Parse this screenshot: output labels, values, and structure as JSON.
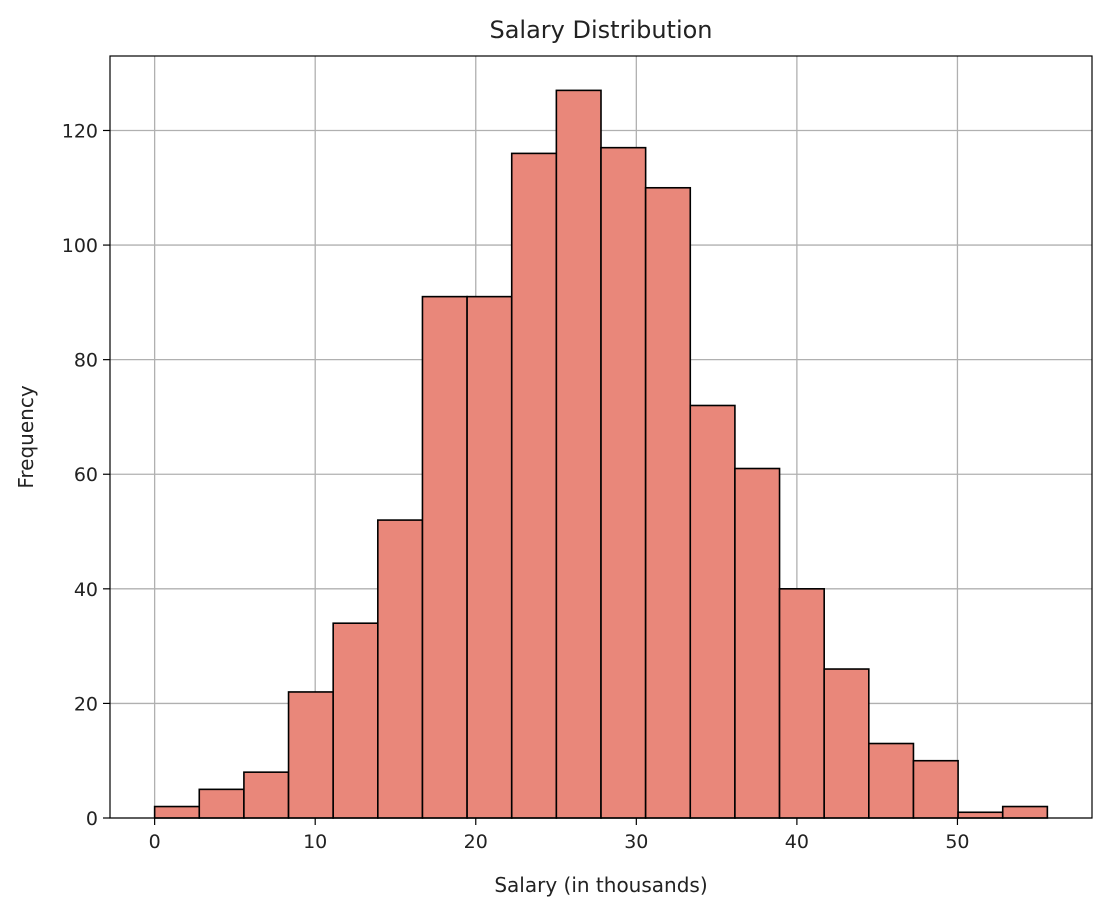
{
  "chart_data": {
    "type": "bar",
    "title": "Salary Distribution",
    "xlabel": "Salary (in thousands)",
    "ylabel": "Frequency",
    "bins": [
      {
        "x0": 0.0,
        "x1": 2.78,
        "count": 2
      },
      {
        "x0": 2.78,
        "x1": 5.56,
        "count": 5
      },
      {
        "x0": 5.56,
        "x1": 8.34,
        "count": 8
      },
      {
        "x0": 8.34,
        "x1": 11.12,
        "count": 22
      },
      {
        "x0": 11.12,
        "x1": 13.9,
        "count": 34
      },
      {
        "x0": 13.9,
        "x1": 16.68,
        "count": 52
      },
      {
        "x0": 16.68,
        "x1": 19.46,
        "count": 91
      },
      {
        "x0": 19.46,
        "x1": 22.24,
        "count": 91
      },
      {
        "x0": 22.24,
        "x1": 25.02,
        "count": 116
      },
      {
        "x0": 25.02,
        "x1": 27.8,
        "count": 127
      },
      {
        "x0": 27.8,
        "x1": 30.58,
        "count": 117
      },
      {
        "x0": 30.58,
        "x1": 33.36,
        "count": 110
      },
      {
        "x0": 33.36,
        "x1": 36.14,
        "count": 72
      },
      {
        "x0": 36.14,
        "x1": 38.92,
        "count": 61
      },
      {
        "x0": 38.92,
        "x1": 41.7,
        "count": 40
      },
      {
        "x0": 41.7,
        "x1": 44.48,
        "count": 26
      },
      {
        "x0": 44.48,
        "x1": 47.26,
        "count": 13
      },
      {
        "x0": 47.26,
        "x1": 50.04,
        "count": 10
      },
      {
        "x0": 50.04,
        "x1": 52.82,
        "count": 1
      },
      {
        "x0": 52.82,
        "x1": 55.6,
        "count": 2
      }
    ],
    "xlim": [
      -2.78,
      58.38
    ],
    "ylim": [
      0,
      133
    ],
    "xticks": [
      0,
      10,
      20,
      30,
      40,
      50
    ],
    "yticks": [
      0,
      20,
      40,
      60,
      80,
      100,
      120
    ],
    "grid": true,
    "bar_color": "#e9877a",
    "edge_color": "#000000",
    "grid_color": "#b0b0b0"
  }
}
